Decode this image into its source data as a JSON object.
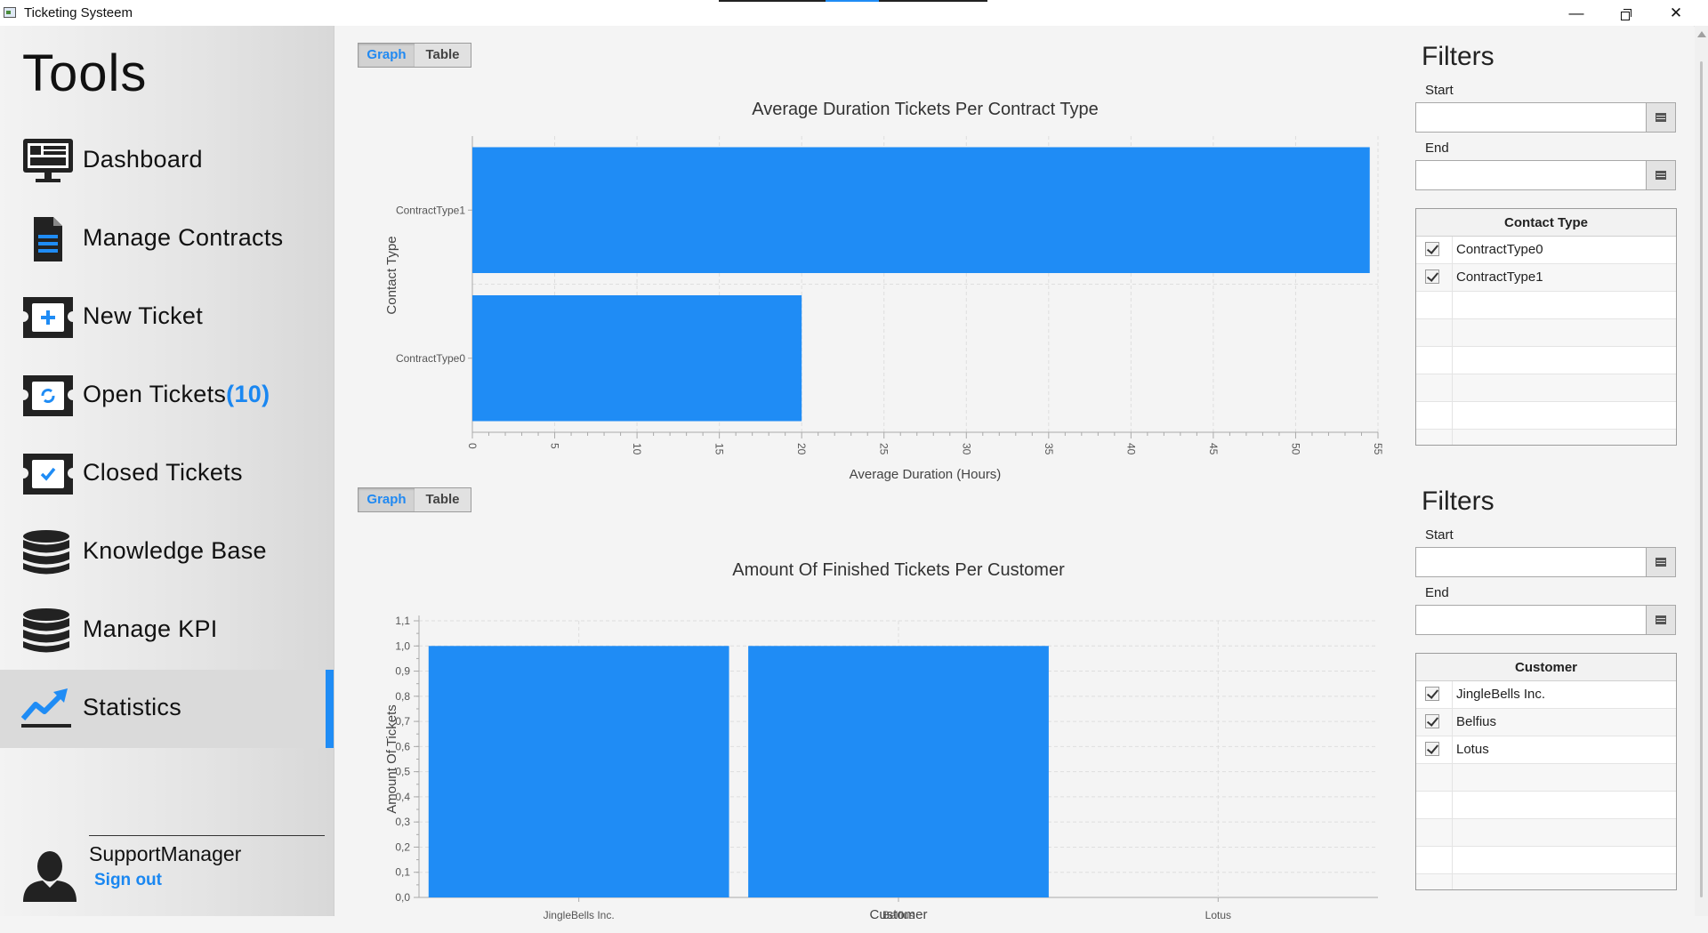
{
  "window": {
    "title": "Ticketing Systeem",
    "minimize": "—",
    "close": "✕"
  },
  "sidebar": {
    "title": "Tools",
    "items": [
      {
        "label": "Dashboard",
        "icon": "monitor-icon"
      },
      {
        "label": "Manage Contracts",
        "icon": "document-icon"
      },
      {
        "label": "New Ticket",
        "icon": "ticket-plus-icon"
      },
      {
        "label": "Open Tickets",
        "count": "(10)",
        "icon": "ticket-refresh-icon"
      },
      {
        "label": "Closed Tickets",
        "icon": "ticket-check-icon"
      },
      {
        "label": "Knowledge Base",
        "icon": "database-icon"
      },
      {
        "label": "Manage KPI",
        "icon": "database-icon"
      },
      {
        "label": "Statistics",
        "icon": "chart-line-icon",
        "active": true
      }
    ],
    "user": {
      "name": "SupportManager",
      "signout": "Sign out"
    }
  },
  "toggles": [
    {
      "graph": "Graph",
      "table": "Table",
      "selected": "Graph"
    },
    {
      "graph": "Graph",
      "table": "Table",
      "selected": "Graph"
    }
  ],
  "filters": [
    {
      "title": "Filters",
      "start_label": "Start",
      "start_value": "",
      "end_label": "End",
      "end_value": "",
      "table_header": "Contact Type",
      "items": [
        "ContractType0",
        "ContractType1"
      ],
      "checked": [
        true,
        true
      ]
    },
    {
      "title": "Filters",
      "start_label": "Start",
      "start_value": "",
      "end_label": "End",
      "end_value": "",
      "table_header": "Customer",
      "items": [
        "JingleBells Inc.",
        "Belfius",
        "Lotus"
      ],
      "checked": [
        true,
        true,
        true
      ]
    }
  ],
  "chart_data": [
    {
      "type": "bar",
      "orientation": "horizontal",
      "title": "Average Duration Tickets Per Contract Type",
      "xlabel": "Average Duration (Hours)",
      "ylabel": "Contact Type",
      "categories": [
        "ContractType0",
        "ContractType1"
      ],
      "values": [
        20,
        54.5
      ],
      "xlim": [
        0,
        55
      ],
      "xticks": [
        "0",
        "5",
        "10",
        "15",
        "20",
        "25",
        "30",
        "35",
        "40",
        "45",
        "50",
        "55"
      ],
      "grid": true,
      "color": "#1f8cf5"
    },
    {
      "type": "bar",
      "orientation": "vertical",
      "title": "Amount Of Finished Tickets Per Customer",
      "xlabel": "Customer",
      "ylabel": "Amount Of Tickets",
      "categories": [
        "JingleBells Inc.",
        "Belfius",
        "Lotus"
      ],
      "values": [
        1.0,
        1.0,
        0
      ],
      "ylim": [
        0,
        1.1
      ],
      "yticks": [
        "0,0",
        "0,1",
        "0,2",
        "0,3",
        "0,4",
        "0,5",
        "0,6",
        "0,7",
        "0,8",
        "0,9",
        "1,0",
        "1,1"
      ],
      "grid": true,
      "color": "#1f8cf5"
    }
  ]
}
